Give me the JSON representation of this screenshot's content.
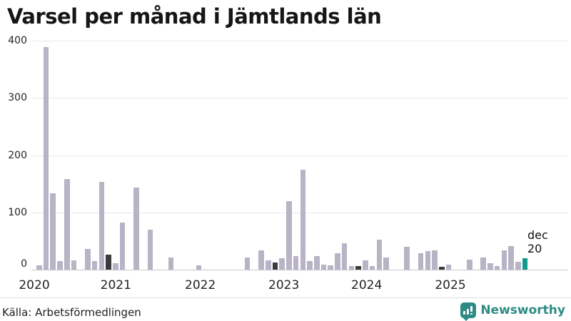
{
  "title": "Varsel per månad i Jämtlands län",
  "chart_data": {
    "type": "bar",
    "title": "Varsel per månad i Jämtlands län",
    "ylabel": "",
    "xlabel": "",
    "ylim": [
      0,
      400
    ],
    "yticks": [
      0,
      100,
      200,
      300,
      400
    ],
    "xticks": [
      "2020",
      "2021",
      "2022",
      "2023",
      "2024",
      "2025"
    ],
    "grid": "horizontal",
    "years_order": [
      "2020",
      "2021",
      "2022",
      "2023",
      "2024",
      "2025"
    ],
    "series_by_year": {
      "2020": [
        0,
        8,
        388,
        133,
        15,
        158,
        17,
        0,
        37,
        15,
        153,
        26
      ],
      "2021": [
        12,
        83,
        0,
        143,
        0,
        70,
        0,
        0,
        21,
        0,
        0,
        0
      ],
      "2022": [
        8,
        0,
        0,
        0,
        0,
        0,
        0,
        22,
        0,
        34,
        16,
        13
      ],
      "2023": [
        20,
        120,
        24,
        175,
        15,
        24,
        9,
        8,
        29,
        47,
        6,
        7
      ],
      "2024": [
        16,
        6,
        53,
        22,
        0,
        0,
        40,
        0,
        29,
        33,
        34,
        5
      ],
      "2025": [
        9,
        0,
        0,
        18,
        0,
        21,
        11,
        6,
        34,
        41,
        14,
        20
      ]
    },
    "colors": {
      "bar": "#b8b3c5",
      "december": "#3b3b3b",
      "highlight": "#0f9a8c"
    },
    "highlight": {
      "year": "2025",
      "month": "dec",
      "value": 20
    },
    "annotation": {
      "line1": "dec",
      "line2": "20"
    }
  },
  "footer": {
    "source": "Källa: Arbetsförmedlingen"
  },
  "branding": {
    "name": "Newsworthy",
    "logo_icon": "newsworthy-speech-bubble-chart-icon",
    "color": "#2e8b84"
  }
}
